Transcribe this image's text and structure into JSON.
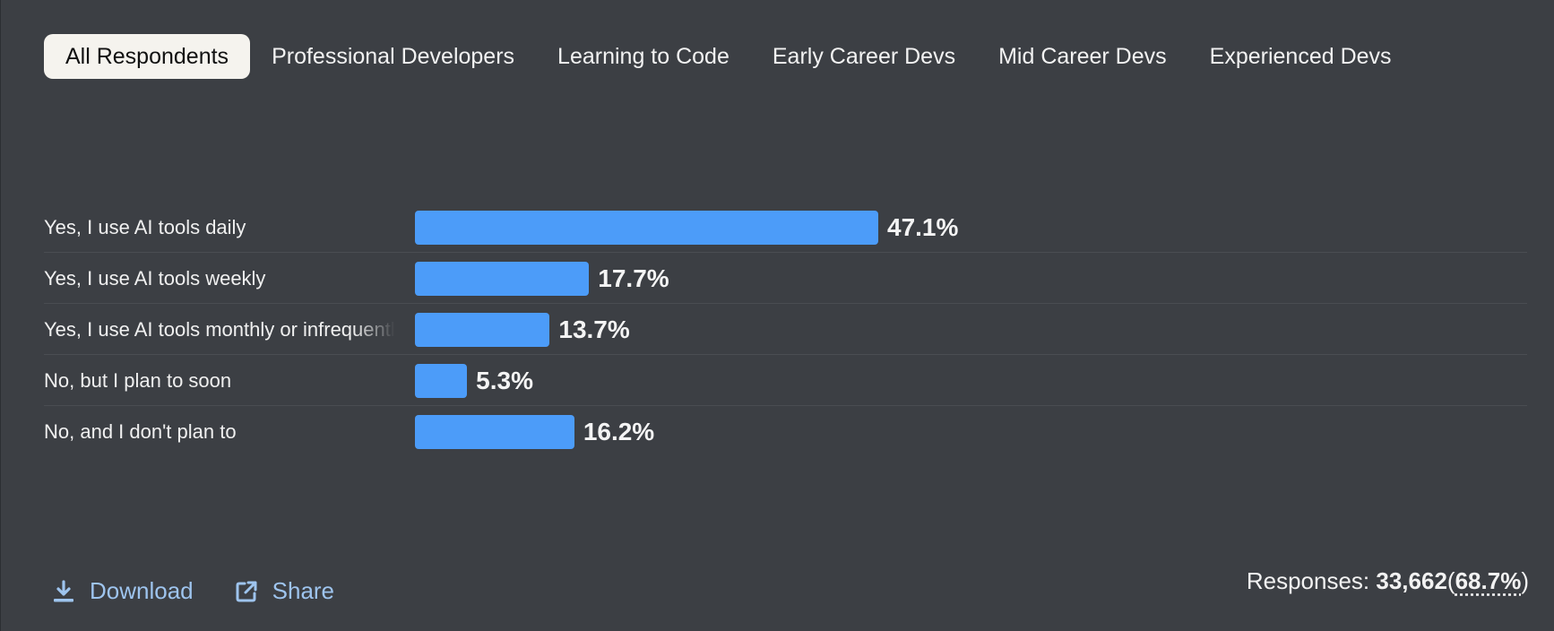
{
  "tabs": [
    {
      "label": "All Respondents",
      "active": true
    },
    {
      "label": "Professional Developers",
      "active": false
    },
    {
      "label": "Learning to Code",
      "active": false
    },
    {
      "label": "Early Career Devs",
      "active": false
    },
    {
      "label": "Mid Career Devs",
      "active": false
    },
    {
      "label": "Experienced Devs",
      "active": false
    }
  ],
  "chart_data": {
    "type": "bar",
    "orientation": "horizontal",
    "categories": [
      "Yes, I use AI tools daily",
      "Yes, I use AI tools weekly",
      "Yes, I use AI tools monthly or infrequently",
      "No, but I plan to soon",
      "No, and I don't plan to"
    ],
    "values": [
      47.1,
      17.7,
      13.7,
      5.3,
      16.2
    ],
    "value_labels": [
      "47.1%",
      "17.7%",
      "13.7%",
      "5.3%",
      "16.2%"
    ],
    "unit": "%",
    "bar_color": "#4c9cf9"
  },
  "footer": {
    "download_label": "Download",
    "share_label": "Share",
    "responses_label": "Responses:",
    "responses_count": "33,662",
    "responses_open": "(",
    "responses_pct": "68.7%",
    "responses_close": ")"
  },
  "colors": {
    "background": "#3c3f44",
    "active_tab": "#f5f3ee",
    "link": "#9ec4ee"
  }
}
